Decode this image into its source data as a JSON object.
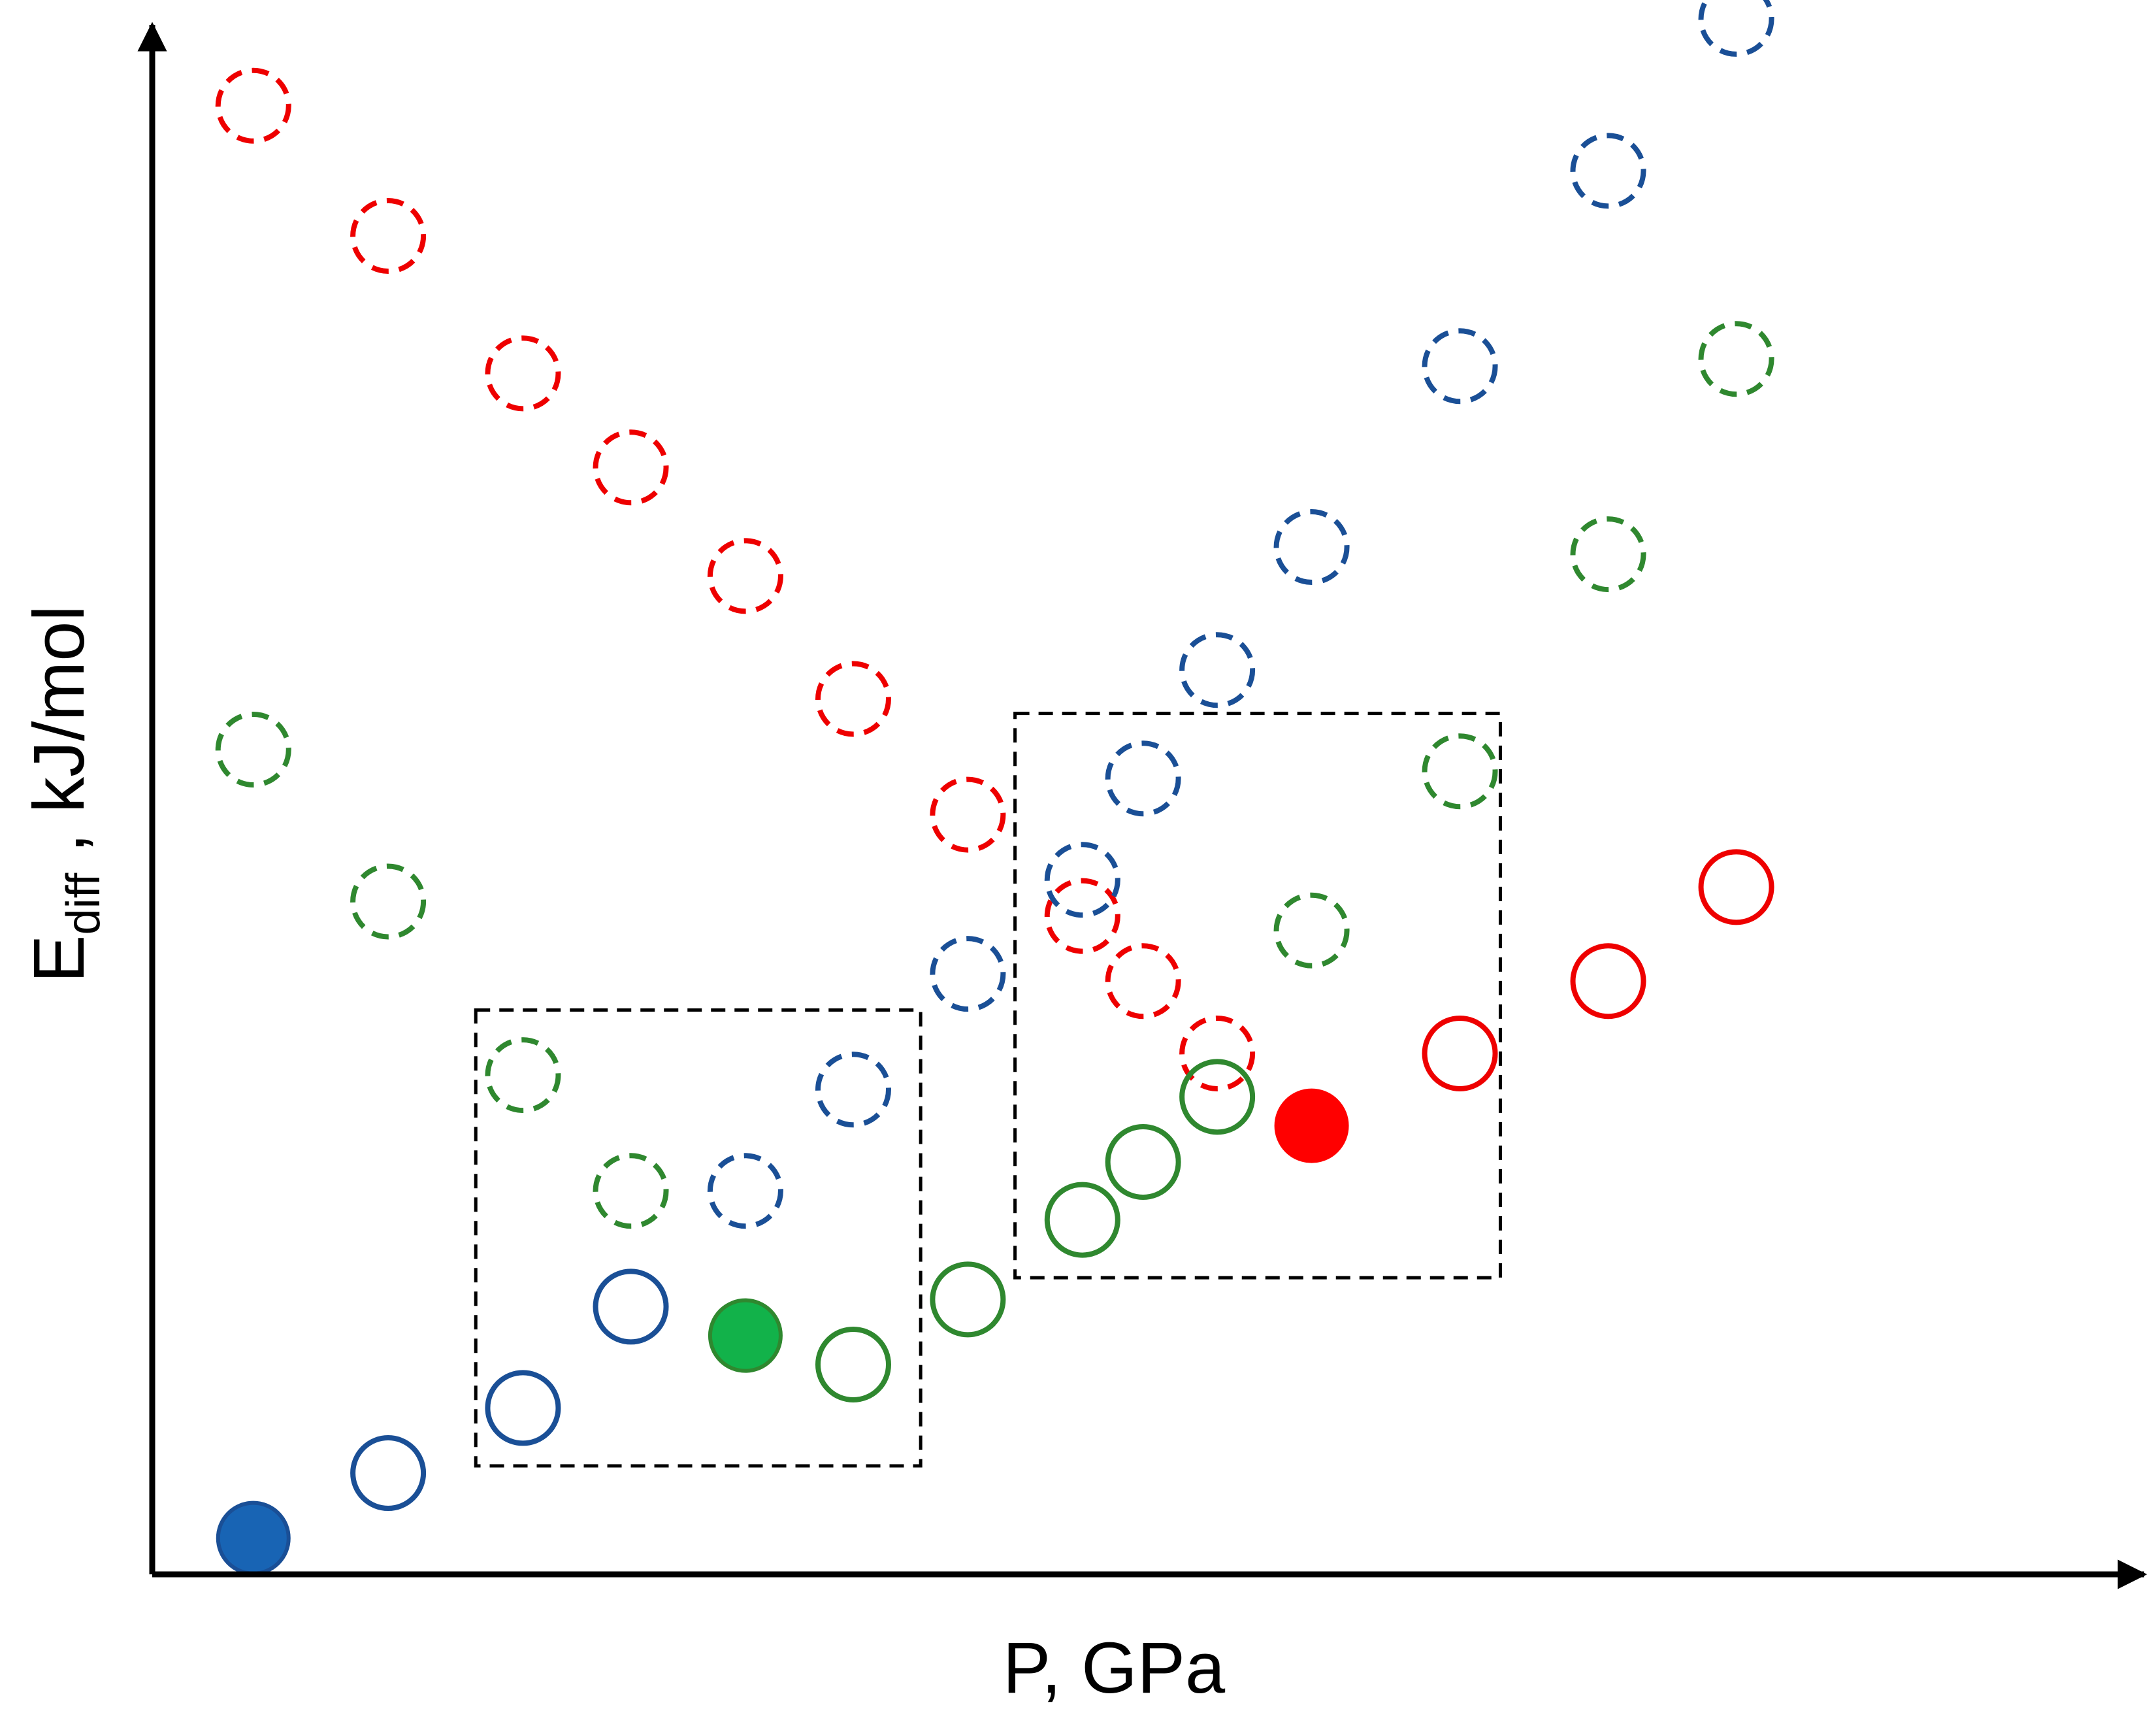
{
  "chart_data": {
    "type": "scatter",
    "title": "",
    "xlabel": "P, GPa",
    "ylabel": {
      "main": "E",
      "sub": "diff",
      "rest": " , kJ/mol"
    },
    "axis_ticks": "none",
    "grid": false,
    "legend": "none",
    "colors": {
      "red": "#ee0000",
      "green": "#2f882f",
      "blue": "#1a4f96",
      "red_fill": "#ff0000",
      "green_fill": "#12b24a",
      "blue_fill": "#1864b4",
      "axis": "#000000",
      "box": "#000000"
    },
    "xlim": [
      0,
      14.5
    ],
    "ylim": [
      0,
      10.7
    ],
    "series": [
      {
        "color": "red",
        "style": "dashed",
        "points": [
          [
            0.75,
            10.15
          ],
          [
            1.75,
            9.25
          ],
          [
            2.75,
            8.3
          ],
          [
            3.55,
            7.65
          ],
          [
            4.4,
            6.9
          ],
          [
            5.2,
            6.05
          ],
          [
            6.05,
            5.25
          ],
          [
            6.9,
            4.55
          ],
          [
            7.35,
            4.1
          ],
          [
            7.9,
            3.6
          ]
        ]
      },
      {
        "color": "blue",
        "style": "dashed",
        "points": [
          [
            5.2,
            3.35
          ],
          [
            6.05,
            4.15
          ],
          [
            6.9,
            4.8
          ],
          [
            7.35,
            5.5
          ],
          [
            7.9,
            6.25
          ],
          [
            8.6,
            7.1
          ],
          [
            9.7,
            8.35
          ],
          [
            10.8,
            9.7
          ],
          [
            11.75,
            10.75
          ]
        ]
      },
      {
        "color": "green",
        "style": "dashed",
        "points": [
          [
            0.75,
            5.7
          ],
          [
            1.75,
            4.65
          ],
          [
            2.75,
            3.45
          ],
          [
            3.55,
            2.65
          ],
          [
            8.6,
            4.45
          ],
          [
            9.7,
            5.55
          ],
          [
            10.8,
            7.05
          ],
          [
            11.75,
            8.4
          ]
        ]
      },
      {
        "color": "blue",
        "style": "dashed",
        "points": [
          [
            4.4,
            2.65
          ]
        ]
      },
      {
        "color": "red",
        "style": "solid",
        "points": [
          [
            9.7,
            3.6
          ],
          [
            10.8,
            4.1
          ],
          [
            11.75,
            4.75
          ]
        ]
      },
      {
        "color": "green",
        "style": "solid",
        "points": [
          [
            5.2,
            1.45
          ],
          [
            6.05,
            1.9
          ],
          [
            6.9,
            2.45
          ],
          [
            7.35,
            2.85
          ],
          [
            7.9,
            3.3
          ]
        ]
      },
      {
        "color": "blue",
        "style": "solid",
        "points": [
          [
            1.75,
            0.7
          ],
          [
            2.75,
            1.15
          ],
          [
            3.55,
            1.85
          ]
        ]
      },
      {
        "color": "blue_fill",
        "style": "filled",
        "points": [
          [
            0.75,
            0.25
          ]
        ]
      },
      {
        "color": "green_fill",
        "style": "filled",
        "points": [
          [
            4.4,
            1.65
          ]
        ]
      },
      {
        "color": "red_fill",
        "style": "filled",
        "points": [
          [
            8.6,
            3.1
          ]
        ]
      }
    ],
    "highlight_boxes": [
      {
        "x": [
          2.4,
          5.7
        ],
        "y": [
          0.75,
          3.9
        ]
      },
      {
        "x": [
          6.4,
          10.0
        ],
        "y": [
          2.05,
          5.95
        ]
      }
    ]
  }
}
